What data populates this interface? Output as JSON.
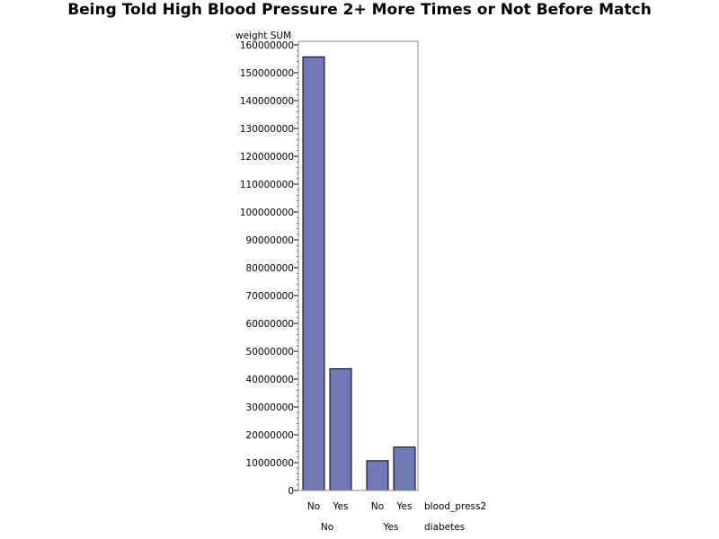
{
  "chart_data": {
    "type": "bar",
    "title": "Being Told High Blood Pressure 2+ More Times or Not Before Match",
    "ylabel": "weight SUM",
    "ylim": [
      0,
      160000000
    ],
    "yticks": [
      0,
      10000000,
      20000000,
      30000000,
      40000000,
      50000000,
      60000000,
      70000000,
      80000000,
      90000000,
      100000000,
      110000000,
      120000000,
      130000000,
      140000000,
      150000000,
      160000000
    ],
    "inner_var_label": "blood_press2",
    "outer_var_label": "diabetes",
    "groups": [
      {
        "label": "No",
        "bars": [
          {
            "label": "No",
            "value": 155700000
          },
          {
            "label": "Yes",
            "value": 43700000
          }
        ]
      },
      {
        "label": "Yes",
        "bars": [
          {
            "label": "No",
            "value": 10700000
          },
          {
            "label": "Yes",
            "value": 15600000
          }
        ]
      }
    ],
    "colors": {
      "bar_fill": "#6f7ab5",
      "bar_stroke": "#000000",
      "frame": "#888888"
    },
    "grid": false
  }
}
